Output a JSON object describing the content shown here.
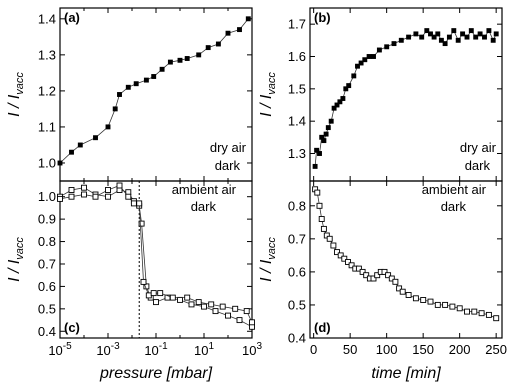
{
  "chart_data": [
    {
      "type": "line",
      "panel_label": "(a)",
      "annotation": [
        "dry air",
        "dark"
      ],
      "ylabel": "I / Ivacc",
      "xscale": "log",
      "xlim": [
        1e-05,
        1000
      ],
      "ylim": [
        0.95,
        1.43
      ],
      "yticks": [
        1.0,
        1.1,
        1.2,
        1.3,
        1.4
      ],
      "marker": "filled-square",
      "series": [
        {
          "x": [
            1e-05,
            3e-05,
            7e-05,
            0.0003,
            0.001,
            0.002,
            0.003,
            0.007,
            0.015,
            0.04,
            0.08,
            0.18,
            0.4,
            1,
            2,
            6,
            15,
            40,
            100,
            300,
            700
          ],
          "y": [
            1.0,
            1.03,
            1.05,
            1.07,
            1.1,
            1.15,
            1.19,
            1.21,
            1.22,
            1.23,
            1.24,
            1.26,
            1.28,
            1.285,
            1.29,
            1.3,
            1.32,
            1.33,
            1.36,
            1.37,
            1.4
          ]
        }
      ]
    },
    {
      "type": "line",
      "panel_label": "(b)",
      "annotation": [
        "dry air",
        "dark"
      ],
      "ylabel": "I / Ivacc",
      "xlim": [
        -5,
        258
      ],
      "ylim": [
        1.215,
        1.75
      ],
      "yticks": [
        1.3,
        1.4,
        1.5,
        1.6,
        1.7
      ],
      "marker": "filled-square",
      "series": [
        {
          "x": [
            2,
            4,
            8,
            11,
            14,
            17,
            20,
            24,
            28,
            32,
            36,
            40,
            44,
            48,
            55,
            60,
            65,
            70,
            76,
            82,
            90,
            100,
            110,
            120,
            130,
            140,
            148,
            155,
            160,
            165,
            170,
            175,
            180,
            186,
            192,
            198,
            204,
            210,
            216,
            222,
            228,
            234,
            240,
            246,
            250
          ],
          "y": [
            1.26,
            1.31,
            1.3,
            1.35,
            1.34,
            1.36,
            1.38,
            1.4,
            1.44,
            1.45,
            1.46,
            1.47,
            1.5,
            1.51,
            1.54,
            1.57,
            1.58,
            1.59,
            1.6,
            1.6,
            1.62,
            1.63,
            1.64,
            1.65,
            1.66,
            1.67,
            1.66,
            1.68,
            1.67,
            1.66,
            1.67,
            1.65,
            1.64,
            1.66,
            1.68,
            1.65,
            1.67,
            1.66,
            1.68,
            1.66,
            1.67,
            1.66,
            1.68,
            1.65,
            1.67
          ]
        }
      ]
    },
    {
      "type": "line",
      "panel_label": "(c)",
      "annotation": [
        "ambient air",
        "dark"
      ],
      "ylabel": "I / Ivacc",
      "xlabel": "pressure [mbar]",
      "xscale": "log",
      "xlim": [
        1e-05,
        1000
      ],
      "ylim": [
        0.37,
        1.07
      ],
      "yticks": [
        0.4,
        0.5,
        0.6,
        0.7,
        0.8,
        0.9,
        1.0
      ],
      "xtick_labels": [
        "10-5",
        "10-3",
        "10-1",
        "101",
        "103"
      ],
      "vline_x": 0.02,
      "marker": "open-square",
      "series": [
        {
          "x": [
            1e-05,
            3e-05,
            0.0001,
            0.0003,
            0.001,
            0.003,
            0.007,
            0.012,
            0.02,
            0.025,
            0.04,
            0.06,
            0.1,
            0.3,
            1,
            3,
            10,
            30,
            100,
            300,
            1000
          ],
          "y": [
            1.0,
            1.03,
            1.04,
            1.01,
            1.0,
            1.03,
            1.02,
            0.98,
            0.96,
            0.88,
            0.6,
            0.55,
            0.53,
            0.55,
            0.54,
            0.52,
            0.51,
            0.49,
            0.47,
            0.45,
            0.42
          ]
        },
        {
          "x": [
            1e-05,
            3e-05,
            0.0001,
            0.0003,
            0.001,
            0.003,
            0.007,
            0.012,
            0.02,
            0.03,
            0.05,
            0.08,
            0.15,
            0.5,
            2,
            6,
            20,
            60,
            200,
            600,
            1000
          ],
          "y": [
            0.99,
            1.0,
            1.01,
            1.0,
            1.03,
            1.05,
            1.0,
            0.97,
            0.97,
            0.62,
            0.56,
            0.57,
            0.57,
            0.55,
            0.55,
            0.53,
            0.52,
            0.51,
            0.5,
            0.49,
            0.44
          ]
        }
      ]
    },
    {
      "type": "line",
      "panel_label": "(d)",
      "annotation": [
        "ambient air",
        "dark"
      ],
      "ylabel": "I / Ivacc",
      "xlabel": "time [min]",
      "xlim": [
        -5,
        258
      ],
      "ylim": [
        0.4,
        0.875
      ],
      "yticks": [
        0.4,
        0.5,
        0.6,
        0.7,
        0.8
      ],
      "xticks": [
        0,
        50,
        100,
        150,
        200,
        250
      ],
      "marker": "open-square",
      "series": [
        {
          "x": [
            2,
            5,
            8,
            11,
            14,
            18,
            22,
            27,
            32,
            37,
            42,
            47,
            52,
            57,
            62,
            67,
            72,
            77,
            82,
            87,
            92,
            97,
            102,
            107,
            112,
            117,
            122,
            130,
            140,
            150,
            160,
            170,
            180,
            190,
            200,
            210,
            220,
            230,
            240,
            250
          ],
          "y": [
            0.85,
            0.84,
            0.8,
            0.76,
            0.73,
            0.71,
            0.7,
            0.68,
            0.66,
            0.65,
            0.64,
            0.63,
            0.62,
            0.61,
            0.61,
            0.6,
            0.59,
            0.58,
            0.58,
            0.59,
            0.6,
            0.6,
            0.59,
            0.58,
            0.57,
            0.55,
            0.54,
            0.53,
            0.52,
            0.515,
            0.51,
            0.5,
            0.5,
            0.495,
            0.49,
            0.48,
            0.48,
            0.475,
            0.47,
            0.46
          ]
        }
      ]
    }
  ]
}
